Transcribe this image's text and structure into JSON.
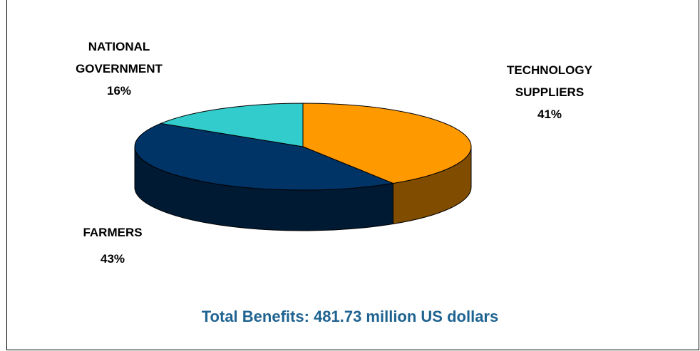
{
  "chart_data": {
    "type": "pie",
    "style": "3d",
    "slices": [
      {
        "label_lines": [
          "TECHNOLOGY",
          "SUPPLIERS"
        ],
        "value": 41,
        "value_label": "41%",
        "color": "#FF9900",
        "side_color": "#7F4C00"
      },
      {
        "label_lines": [
          "FARMERS"
        ],
        "value": 43,
        "value_label": "43%",
        "color": "#003366",
        "side_color": "#001A33"
      },
      {
        "label_lines": [
          "NATIONAL",
          "GOVERNMENT"
        ],
        "value": 16,
        "value_label": "16%",
        "color": "#33CCCC",
        "side_color": "#1A6666"
      }
    ],
    "caption": "Total Benefits: 481.73 million US dollars",
    "caption_color": "#1F6391",
    "legend": "none"
  }
}
